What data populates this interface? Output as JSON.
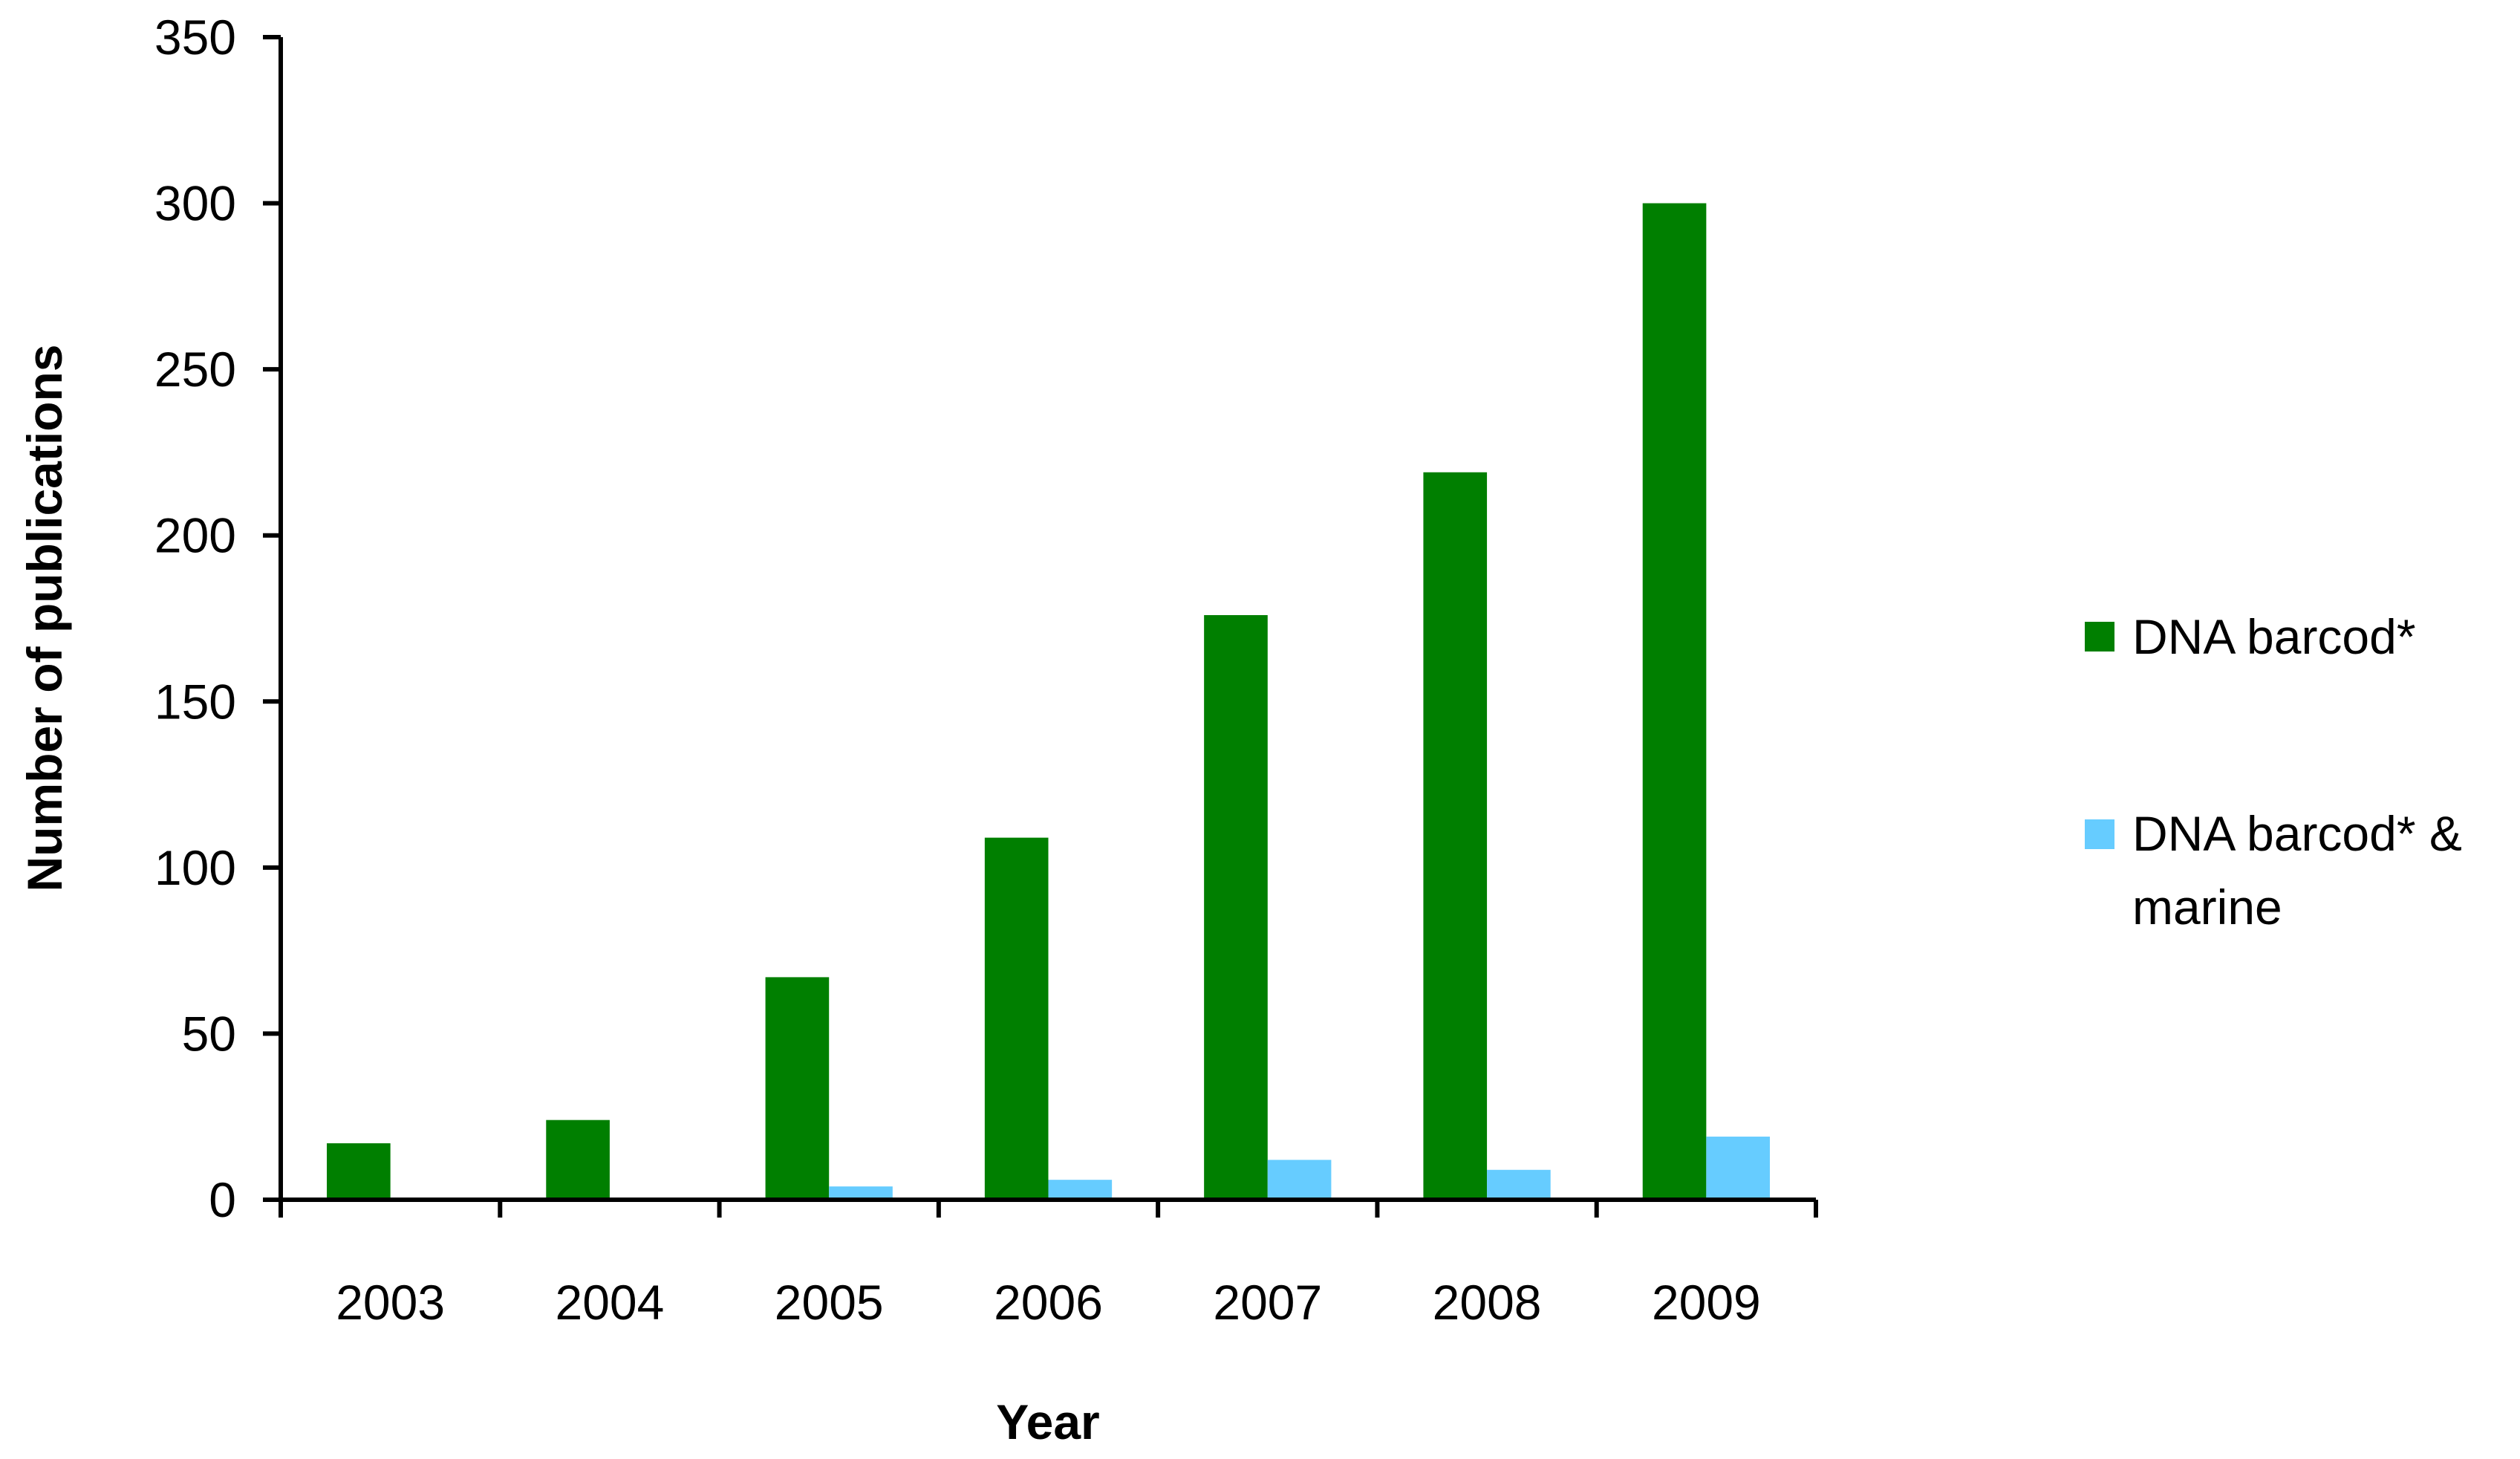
{
  "chart_data": {
    "type": "bar",
    "title": "",
    "xlabel": "Year",
    "ylabel": "Number of publications",
    "categories": [
      "2003",
      "2004",
      "2005",
      "2006",
      "2007",
      "2008",
      "2009"
    ],
    "series": [
      {
        "name": "DNA barcod*",
        "color": "#007f00",
        "values": [
          17,
          24,
          67,
          109,
          176,
          219,
          300
        ]
      },
      {
        "name": "DNA barcod* & marine",
        "color": "#66ccff",
        "values": [
          0,
          0,
          4,
          6,
          12,
          9,
          19
        ]
      }
    ],
    "ylim": [
      0,
      350
    ],
    "yticks": [
      0,
      50,
      100,
      150,
      200,
      250,
      300,
      350
    ],
    "grid": false,
    "legend_position": "right"
  },
  "legend": {
    "series_1_label": "DNA barcod*",
    "series_2_label_line1": "DNA barcod* &",
    "series_2_label_line2": "marine"
  }
}
